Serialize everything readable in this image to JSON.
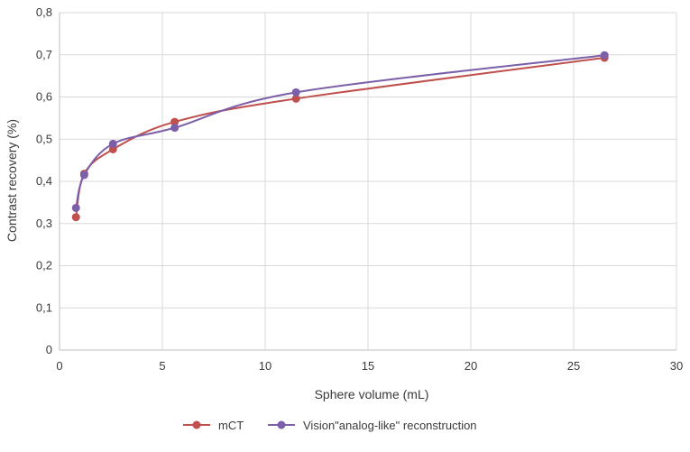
{
  "chart_data": {
    "type": "line",
    "xlabel": "Sphere volume (mL)",
    "ylabel": "Contrast recovery (%)",
    "xlim": [
      0,
      30
    ],
    "ylim": [
      0,
      0.8
    ],
    "x_ticks": [
      0,
      5,
      10,
      15,
      20,
      25,
      30
    ],
    "y_ticks": [
      0,
      0.1,
      0.2,
      0.3,
      0.4,
      0.5,
      0.6,
      0.7,
      0.8
    ],
    "x_tick_labels": [
      "0",
      "5",
      "10",
      "15",
      "20",
      "25",
      "30"
    ],
    "y_tick_labels": [
      "0",
      "0,1",
      "0,2",
      "0,3",
      "0,4",
      "0,5",
      "0,6",
      "0,7",
      "0,8"
    ],
    "grid": true,
    "legend_position": "bottom",
    "series": [
      {
        "name": "mCT",
        "color": "#c0504d",
        "x": [
          0.8,
          1.2,
          2.6,
          5.6,
          11.5,
          26.5
        ],
        "y": [
          0.315,
          0.418,
          0.476,
          0.541,
          0.596,
          0.693
        ]
      },
      {
        "name": "Vision\"analog-like\" reconstruction",
        "color": "#7b5fa8",
        "x": [
          0.8,
          1.2,
          2.6,
          5.6,
          11.5,
          26.5
        ],
        "y": [
          0.337,
          0.415,
          0.489,
          0.527,
          0.611,
          0.699
        ]
      }
    ]
  }
}
